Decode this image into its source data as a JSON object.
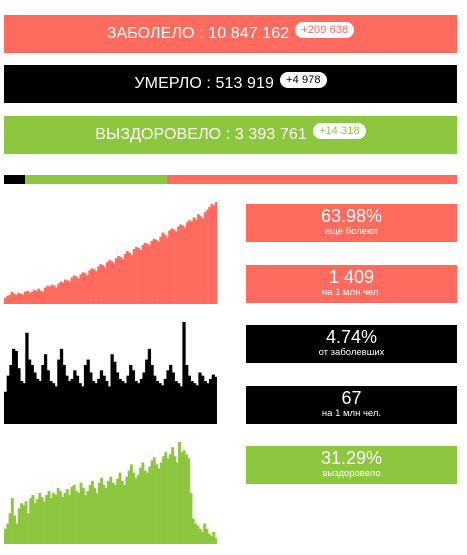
{
  "colors": {
    "red": "#ff6b5e",
    "black": "#000000",
    "green": "#8dc63f"
  },
  "banners": {
    "infected": {
      "label": "ЗАБОЛЕЛО : 10 847 162",
      "delta": "+209 638"
    },
    "died": {
      "label": "УМЕРЛО : 513 919",
      "delta": "+4 978"
    },
    "recovered": {
      "label": "ВЫЗДОРОВЕЛО : 3 393 761",
      "delta": "+14 318"
    }
  },
  "ratio_bar": {
    "died_fraction": 0.0474,
    "recovered_fraction": 0.3129,
    "active_fraction": 0.6397
  },
  "stats": [
    {
      "value": "63.98%",
      "caption": "еще болеют"
    },
    {
      "value": "1 409",
      "caption": "на 1 млн чел."
    },
    {
      "value": "4.74%",
      "caption": "от заболевших"
    },
    {
      "value": "67",
      "caption": "на 1 млн чел."
    },
    {
      "value": "31.29%",
      "caption": "выздоровело"
    }
  ],
  "chart_data": [
    {
      "type": "bar",
      "name": "daily-infected",
      "values": [
        6,
        8,
        9,
        12,
        10,
        9,
        11,
        10,
        9,
        12,
        13,
        11,
        12,
        14,
        13,
        15,
        13,
        12,
        16,
        18,
        17,
        19,
        18,
        16,
        20,
        22,
        21,
        24,
        23,
        22,
        26,
        28,
        27,
        25,
        29,
        31,
        30,
        28,
        33,
        35,
        34,
        32,
        37,
        39,
        38,
        36,
        41,
        43,
        42,
        40,
        45,
        47,
        46,
        44,
        49,
        52,
        50,
        48,
        54,
        56,
        55,
        53,
        58,
        60,
        59,
        57,
        62,
        64,
        63,
        61,
        66,
        70,
        68,
        65,
        72,
        74,
        73,
        71,
        76,
        78,
        77,
        75,
        80,
        82,
        81,
        85,
        83,
        88,
        86,
        84,
        90,
        92,
        95,
        98,
        96,
        100
      ]
    },
    {
      "type": "bar",
      "name": "daily-deaths",
      "values": [
        30,
        45,
        55,
        70,
        68,
        52,
        40,
        38,
        85,
        60,
        55,
        48,
        42,
        40,
        55,
        65,
        50,
        40,
        38,
        35,
        60,
        70,
        55,
        45,
        40,
        42,
        50,
        45,
        38,
        35,
        55,
        60,
        48,
        40,
        38,
        42,
        50,
        45,
        40,
        35,
        65,
        58,
        48,
        42,
        40,
        38,
        45,
        55,
        50,
        40,
        38,
        42,
        48,
        60,
        70,
        55,
        45,
        40,
        38,
        36,
        42,
        50,
        55,
        48,
        40,
        38,
        35,
        95,
        55,
        45,
        40,
        38,
        36,
        48,
        45,
        40,
        38,
        42,
        46,
        44
      ]
    },
    {
      "type": "bar",
      "name": "daily-recovered",
      "values": [
        15,
        20,
        30,
        45,
        28,
        20,
        35,
        40,
        38,
        42,
        30,
        45,
        48,
        40,
        44,
        50,
        46,
        42,
        48,
        52,
        45,
        50,
        48,
        55,
        52,
        46,
        50,
        54,
        48,
        56,
        58,
        52,
        50,
        60,
        55,
        48,
        52,
        58,
        62,
        55,
        50,
        60,
        65,
        58,
        55,
        62,
        66,
        60,
        58,
        64,
        70,
        62,
        58,
        66,
        72,
        78,
        70,
        65,
        68,
        75,
        80,
        72,
        70,
        76,
        82,
        85,
        78,
        74,
        80,
        86,
        90,
        84,
        88,
        95,
        86,
        80,
        100,
        90,
        92,
        88,
        84,
        50,
        25,
        20,
        18,
        15,
        12,
        20,
        15,
        10,
        8,
        12,
        6
      ]
    }
  ]
}
